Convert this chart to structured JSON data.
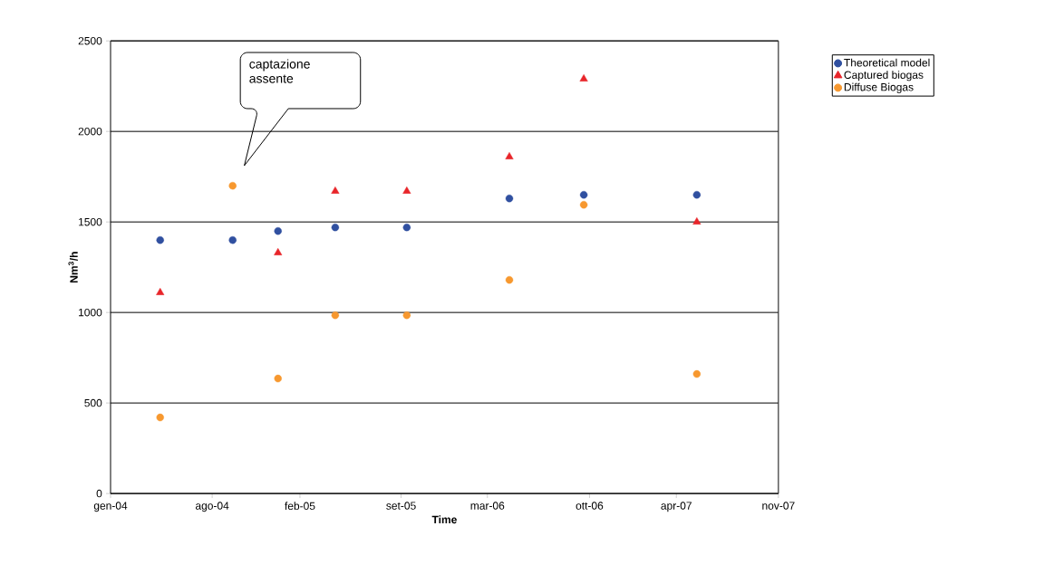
{
  "chart_data": {
    "type": "scatter",
    "xlabel": "Time",
    "ylabel": "Nm$^{3}$/h",
    "xlim": [
      "2004-01-01",
      "2007-11-01"
    ],
    "xticks": [
      {
        "value": "2004-01-01",
        "label": "gen-04"
      },
      {
        "value": "2004-08-01",
        "label": "ago-04"
      },
      {
        "value": "2005-02-01",
        "label": "feb-05"
      },
      {
        "value": "2005-09-01",
        "label": "set-05"
      },
      {
        "value": "2006-03-01",
        "label": "mar-06"
      },
      {
        "value": "2006-10-01",
        "label": "ott-06"
      },
      {
        "value": "2007-04-01",
        "label": "apr-07"
      },
      {
        "value": "2007-11-01",
        "label": "nov-07"
      }
    ],
    "ylim": [
      0,
      2500
    ],
    "yticks": [
      0,
      500,
      1000,
      1500,
      2000,
      2500
    ],
    "grid": "y",
    "legend": "right",
    "x": [
      "2004-04-14",
      "2004-09-13",
      "2004-12-17",
      "2005-04-16",
      "2005-09-13",
      "2006-04-16",
      "2006-09-19",
      "2007-05-14"
    ],
    "series": [
      {
        "name": "Theoretical model",
        "color": "#3050a0",
        "marker": "circle",
        "values": [
          1400,
          1400,
          1450,
          1470,
          1470,
          1630,
          1650,
          1650
        ]
      },
      {
        "name": "Captured biogas",
        "color": "#e8252a",
        "marker": "triangle",
        "values": [
          1110,
          null,
          1330,
          1670,
          1670,
          1860,
          2290,
          1500
        ]
      },
      {
        "name": "Diffuse Biogas",
        "color": "#f7982f",
        "marker": "circle",
        "values": [
          420,
          1700,
          635,
          985,
          985,
          1180,
          1595,
          660
        ]
      }
    ],
    "annotations": [
      "captazione assente"
    ]
  }
}
